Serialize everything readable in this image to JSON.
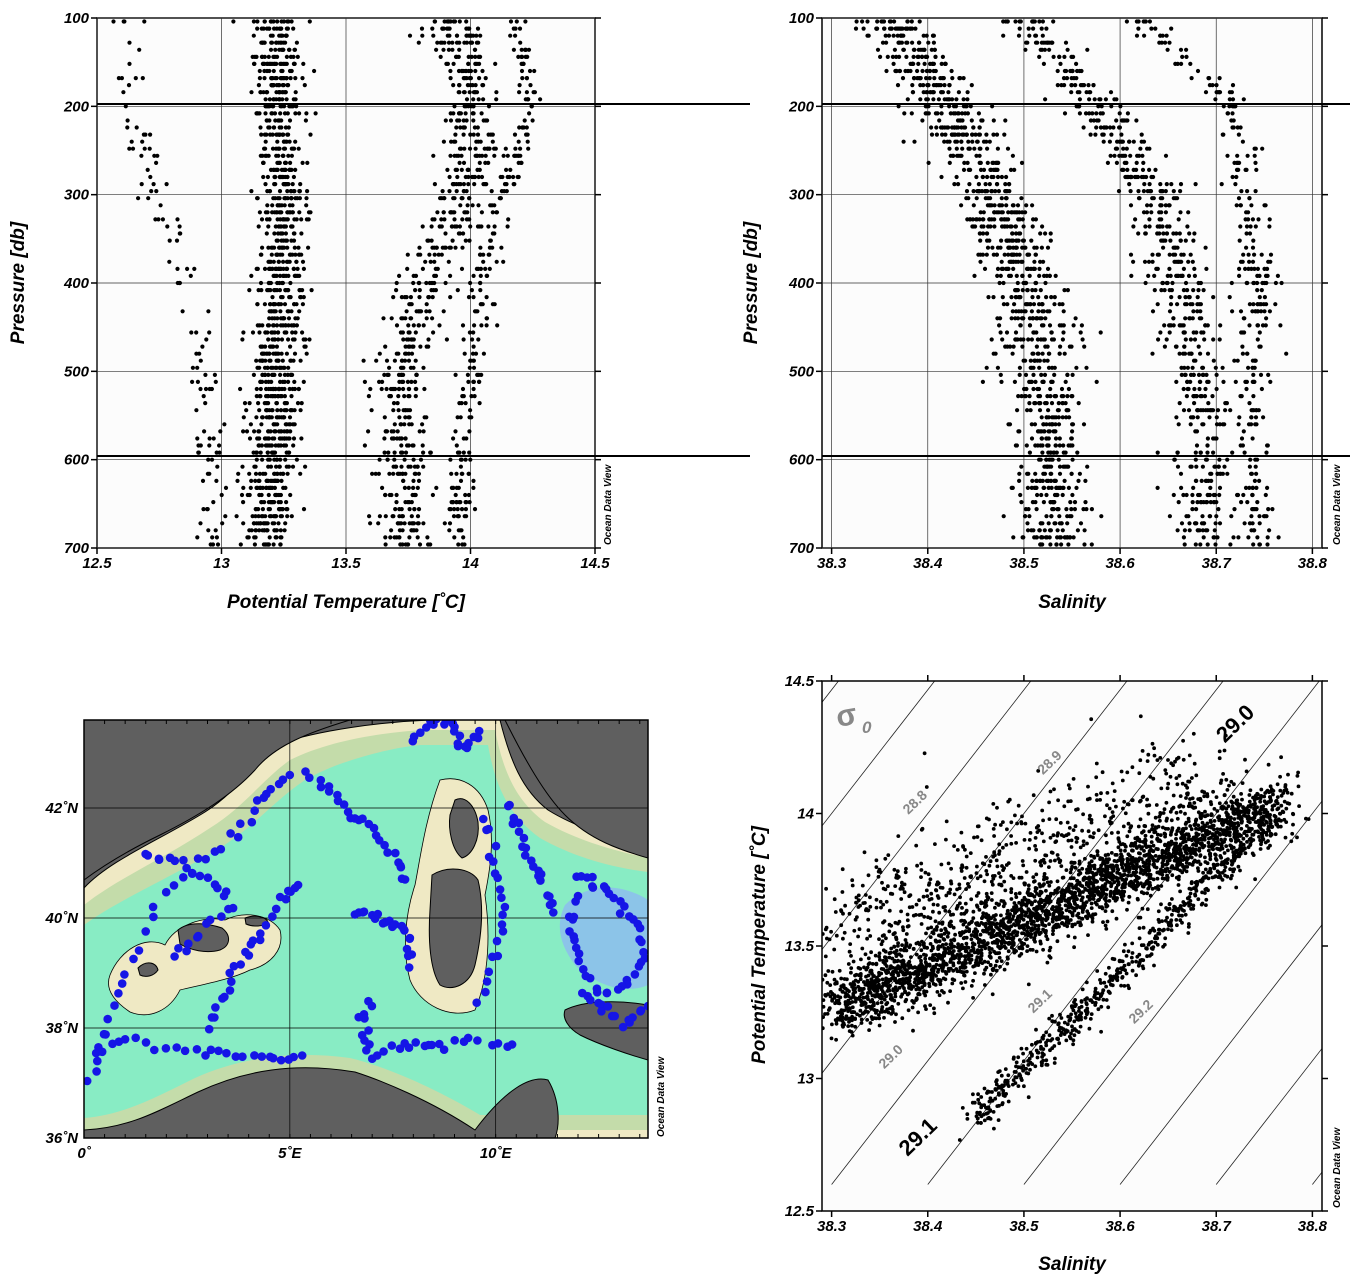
{
  "credit_text": "Ocean Data View",
  "colors": {
    "points": "#000000",
    "stations": "#1515e6",
    "land": "#5f5f5f",
    "coast": "#efe9c4",
    "shelf": "#c4dcaa",
    "deep": "#88ecc4",
    "deepest": "#8cc4e8",
    "isopycnal_label": "#888888"
  },
  "chart_data": [
    {
      "type": "scatter",
      "xlabel": "Potential Temperature [˚C]",
      "ylabel": "Pressure [db]",
      "xlim": [
        12.5,
        14.5
      ],
      "ylim": [
        700,
        100
      ],
      "xticks": [
        "12.5",
        "13",
        "13.5",
        "14",
        "14.5"
      ],
      "yticks": [
        "100",
        "200",
        "300",
        "400",
        "500",
        "600",
        "700"
      ],
      "grid": true,
      "clusters": [
        {
          "p": [
            100,
            200,
            300,
            400,
            500,
            600,
            700
          ],
          "x": [
            12.62,
            12.62,
            12.74,
            12.86,
            12.94,
            12.96,
            12.98
          ],
          "spread": 0.06,
          "n": 120
        },
        {
          "p": [
            100,
            200,
            300,
            400,
            500,
            600,
            700
          ],
          "x": [
            13.22,
            13.22,
            13.24,
            13.24,
            13.22,
            13.2,
            13.18
          ],
          "spread": 0.09,
          "n": 1100
        },
        {
          "p": [
            100,
            200,
            300,
            400,
            500,
            600,
            700
          ],
          "x": [
            13.92,
            14.02,
            13.96,
            13.82,
            13.72,
            13.72,
            13.72
          ],
          "spread": 0.1,
          "n": 650
        },
        {
          "p": [
            100,
            200,
            300,
            400,
            500,
            600,
            700
          ],
          "x": [
            14.18,
            14.24,
            14.12,
            14.04,
            14.0,
            13.96,
            13.94
          ],
          "spread": 0.05,
          "n": 260
        }
      ]
    },
    {
      "type": "scatter",
      "xlabel": "Salinity",
      "ylabel": "Pressure [db]",
      "xlim": [
        38.29,
        38.81
      ],
      "ylim": [
        700,
        100
      ],
      "xticks": [
        "38.3",
        "38.4",
        "38.5",
        "38.6",
        "38.7",
        "38.8"
      ],
      "yticks": [
        "100",
        "200",
        "300",
        "400",
        "500",
        "600",
        "700"
      ],
      "grid": true,
      "clusters": [
        {
          "p": [
            100,
            200,
            300,
            400,
            500,
            600,
            700
          ],
          "x": [
            38.36,
            38.42,
            38.47,
            38.5,
            38.52,
            38.53,
            38.53
          ],
          "spread": 0.035,
          "n": 1100
        },
        {
          "p": [
            100,
            200,
            300,
            400,
            500,
            600,
            700
          ],
          "x": [
            38.5,
            38.58,
            38.63,
            38.66,
            38.68,
            38.69,
            38.69
          ],
          "spread": 0.03,
          "n": 650
        },
        {
          "p": [
            100,
            200,
            300,
            400,
            500,
            600,
            700
          ],
          "x": [
            38.62,
            38.72,
            38.73,
            38.74,
            38.74,
            38.74,
            38.74
          ],
          "spread": 0.02,
          "n": 300
        }
      ]
    },
    {
      "type": "map",
      "lon_range": [
        0,
        13.7
      ],
      "lat_range": [
        36,
        43.6
      ],
      "xticks": [
        "0˚",
        "5˚E",
        "10˚E"
      ],
      "yticks": [
        "36˚N",
        "38˚N",
        "40˚N",
        "42˚N"
      ],
      "station_tracks": [
        [
          [
            0.2,
            37.0
          ],
          [
            0.5,
            38.0
          ],
          [
            1.0,
            39.0
          ],
          [
            1.8,
            40.3
          ],
          [
            2.8,
            41.0
          ],
          [
            3.7,
            41.5
          ],
          [
            4.3,
            42.2
          ],
          [
            5.0,
            42.6
          ]
        ],
        [
          [
            0.3,
            37.6
          ],
          [
            1.2,
            37.8
          ],
          [
            2.5,
            37.6
          ],
          [
            3.5,
            37.5
          ],
          [
            4.5,
            37.4
          ],
          [
            5.3,
            37.5
          ]
        ],
        [
          [
            3.0,
            38.0
          ],
          [
            3.4,
            38.6
          ],
          [
            3.8,
            39.2
          ],
          [
            4.2,
            39.6
          ],
          [
            4.8,
            40.3
          ],
          [
            5.2,
            40.6
          ]
        ],
        [
          [
            5.4,
            42.6
          ],
          [
            6.0,
            42.3
          ],
          [
            6.5,
            41.9
          ],
          [
            7.0,
            41.6
          ],
          [
            7.5,
            41.2
          ],
          [
            7.8,
            40.7
          ]
        ],
        [
          [
            8.0,
            43.2
          ],
          [
            8.5,
            43.6
          ],
          [
            9.0,
            43.5
          ],
          [
            9.2,
            43.0
          ],
          [
            9.6,
            43.4
          ]
        ],
        [
          [
            6.6,
            40.1
          ],
          [
            7.0,
            40.0
          ],
          [
            7.5,
            39.9
          ],
          [
            7.9,
            39.7
          ],
          [
            7.9,
            39.1
          ]
        ],
        [
          [
            7.0,
            38.5
          ],
          [
            6.7,
            38.0
          ],
          [
            7.0,
            37.5
          ],
          [
            7.8,
            37.7
          ],
          [
            8.5,
            37.7
          ],
          [
            9.4,
            37.8
          ],
          [
            10.4,
            37.7
          ]
        ],
        [
          [
            10.3,
            42.1
          ],
          [
            10.6,
            41.5
          ],
          [
            10.9,
            41.0
          ],
          [
            11.2,
            40.6
          ],
          [
            11.4,
            40.1
          ]
        ],
        [
          [
            12.0,
            40.8
          ],
          [
            12.5,
            40.6
          ],
          [
            13.0,
            40.3
          ],
          [
            13.4,
            39.9
          ],
          [
            13.6,
            39.3
          ],
          [
            13.2,
            38.8
          ],
          [
            12.5,
            38.6
          ],
          [
            12.0,
            39.2
          ],
          [
            11.8,
            39.8
          ],
          [
            12.0,
            40.4
          ]
        ],
        [
          [
            12.1,
            38.6
          ],
          [
            12.6,
            38.3
          ],
          [
            13.2,
            38.1
          ],
          [
            13.7,
            38.4
          ]
        ],
        [
          [
            9.6,
            38.5
          ],
          [
            10.0,
            39.4
          ],
          [
            10.2,
            40.2
          ],
          [
            10.0,
            41.0
          ],
          [
            9.7,
            41.8
          ]
        ],
        [
          [
            1.5,
            41.2
          ],
          [
            2.2,
            41.0
          ],
          [
            3.0,
            40.7
          ],
          [
            3.6,
            40.3
          ],
          [
            2.8,
            39.7
          ],
          [
            2.2,
            39.3
          ]
        ]
      ]
    },
    {
      "type": "scatter",
      "xlabel": "Salinity",
      "ylabel": "Potential Temperature [˚C]",
      "xlim": [
        38.29,
        38.81
      ],
      "ylim": [
        12.5,
        14.5
      ],
      "xticks": [
        "38.3",
        "38.4",
        "38.5",
        "38.6",
        "38.7",
        "38.8"
      ],
      "yticks": [
        "12.5",
        "13",
        "13.5",
        "14",
        "14.5"
      ],
      "grid": false,
      "sigma_symbol": "σ",
      "sigma_subscript": "0",
      "isopycnal_labels": [
        {
          "text": "28.8",
          "s": 38.39,
          "t": 14.03,
          "color": "#888888"
        },
        {
          "text": "28.9",
          "s": 38.53,
          "t": 14.18,
          "color": "#888888"
        },
        {
          "text": "29.0",
          "s": 38.725,
          "t": 14.32,
          "color": "#000000"
        },
        {
          "text": "29.0",
          "s": 38.365,
          "t": 13.07,
          "color": "#888888"
        },
        {
          "text": "29.1",
          "s": 38.52,
          "t": 13.28,
          "color": "#888888"
        },
        {
          "text": "29.1",
          "s": 38.395,
          "t": 12.76,
          "color": "#000000"
        },
        {
          "text": "29.2",
          "s": 38.625,
          "t": 13.24,
          "color": "#888888"
        }
      ],
      "clusters": [
        {
          "s0": 38.3,
          "t0": 13.25,
          "s1": 38.77,
          "t1": 14.05,
          "spread": 0.06,
          "n": 2400
        },
        {
          "s0": 38.3,
          "t0": 13.5,
          "s1": 38.7,
          "t1": 14.05,
          "spread": 0.14,
          "n": 900
        },
        {
          "s0": 38.45,
          "t0": 12.85,
          "s1": 38.76,
          "t1": 14.0,
          "spread": 0.03,
          "n": 600
        }
      ]
    }
  ]
}
